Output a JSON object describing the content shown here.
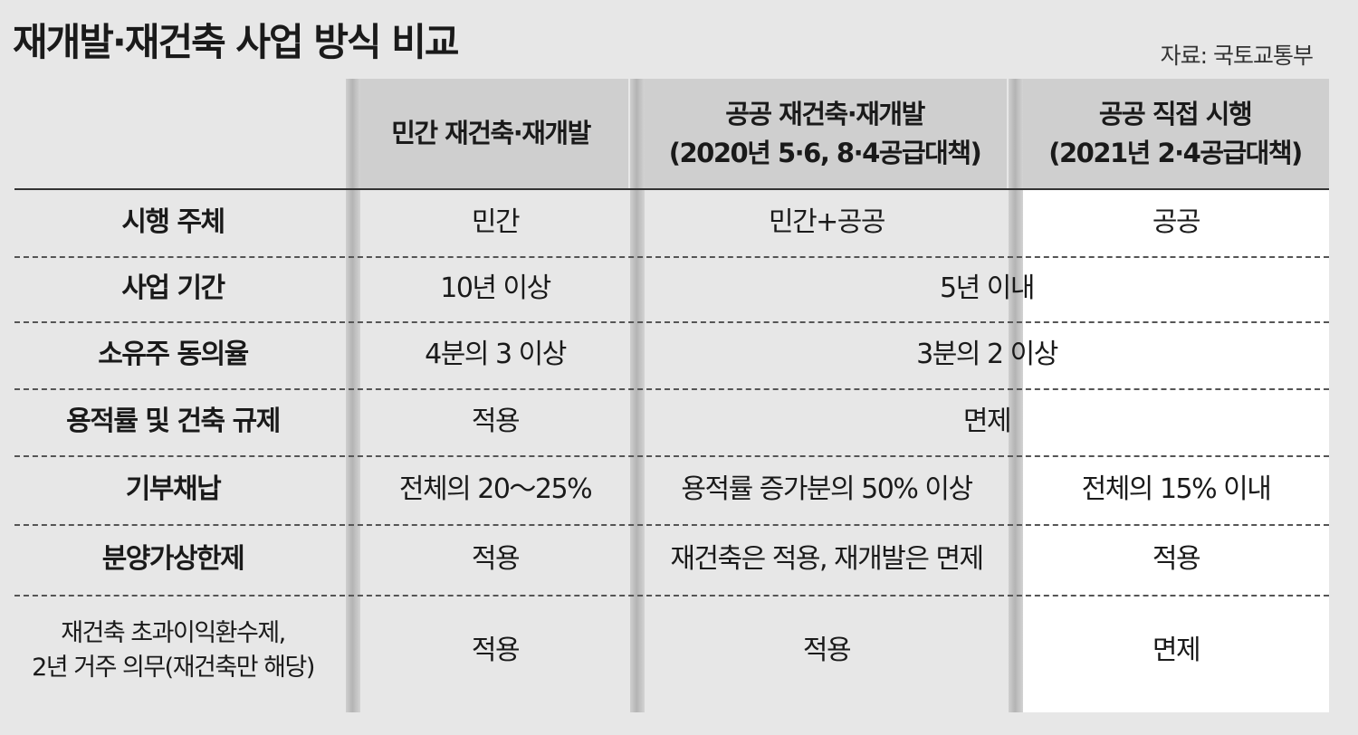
{
  "title": "재개발·재건축 사업 방식 비교",
  "source": "자료: 국토교통부",
  "columns": [
    {
      "line1": "민간 재건축·재개발",
      "line2": ""
    },
    {
      "line1": "공공 재건축·재개발",
      "line2": "(2020년 5·6, 8·4공급대책)"
    },
    {
      "line1": "공공 직접 시행",
      "line2": "(2021년 2·4공급대책)"
    }
  ],
  "rows": [
    {
      "label": "시행 주체",
      "c1": "민간",
      "c2": "민간+공공",
      "c3": "공공"
    },
    {
      "label": "사업 기간",
      "c1": "10년 이상",
      "c23": "5년 이내"
    },
    {
      "label": "소유주 동의율",
      "c1": "4분의 3 이상",
      "c23": "3분의 2 이상"
    },
    {
      "label": "용적률 및 건축 규제",
      "c1": "적용",
      "c23": "면제"
    },
    {
      "label": "기부채납",
      "c1": "전체의 20～25%",
      "c2": "용적률 증가분의 50% 이상",
      "c3": "전체의 15% 이내"
    },
    {
      "label": "분양가상한제",
      "c1": "적용",
      "c2": "재건축은 적용, 재개발은 면제",
      "c3": "적용"
    },
    {
      "label_line1": "재건축 초과이익환수제,",
      "label_line2": "2년 거주 의무(재건축만 해당)",
      "c1": "적용",
      "c2": "적용",
      "c3": "면제"
    }
  ]
}
